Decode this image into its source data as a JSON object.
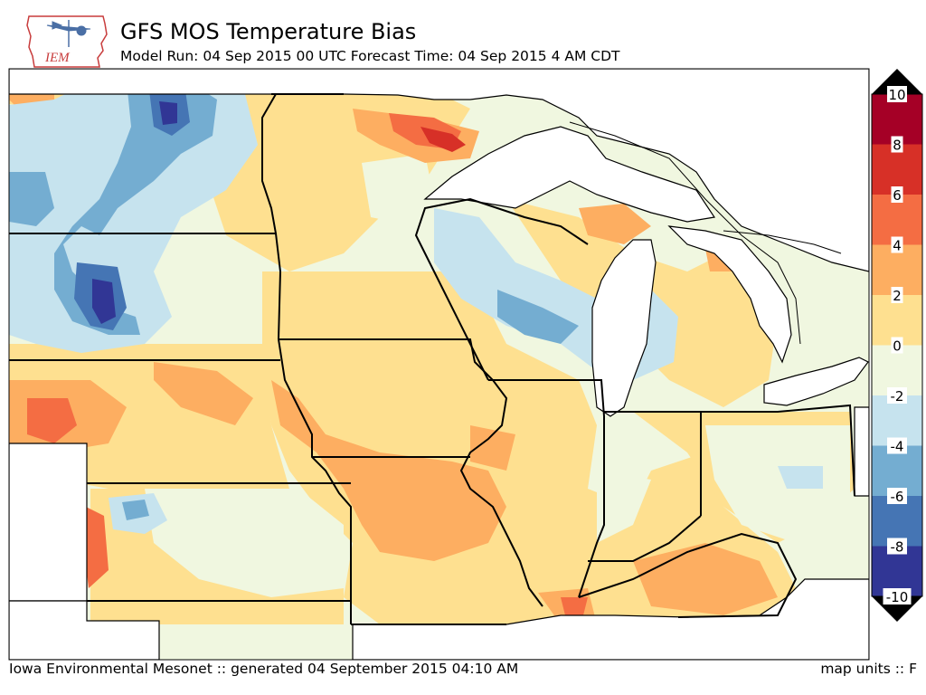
{
  "header": {
    "logo_text": "IEM",
    "title": "GFS MOS Temperature Bias",
    "subtitle": "Model Run: 04 Sep 2015 00 UTC Forecast Time: 04 Sep 2015 4 AM CDT"
  },
  "footer": {
    "credit": "Iowa Environmental Mesonet :: generated 04 September 2015 04:10 AM",
    "units": "map units :: F"
  },
  "legend": {
    "ticks": [
      "10",
      "8",
      "6",
      "4",
      "2",
      "0",
      "-2",
      "-4",
      "-6",
      "-8",
      "-10"
    ],
    "colors": [
      "#a50026",
      "#d73027",
      "#f46d43",
      "#fdae61",
      "#fee090",
      "#f0f7e0",
      "#c6e3ee",
      "#74add1",
      "#4575b4",
      "#313695"
    ]
  },
  "map": {
    "lake_color": "#ffffff",
    "land_default_color": "#f0f7e0",
    "region": "Upper Midwest / Great Lakes"
  }
}
